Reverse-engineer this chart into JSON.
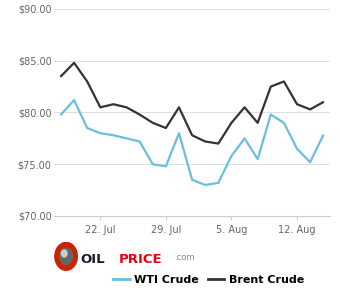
{
  "wti_y": [
    79.8,
    81.2,
    78.5,
    78.0,
    77.8,
    77.5,
    77.2,
    75.0,
    74.8,
    78.0,
    73.5,
    73.0,
    73.2,
    75.8,
    77.5,
    75.5,
    79.8,
    79.0,
    76.5,
    75.2,
    77.8
  ],
  "brent_y": [
    83.5,
    84.8,
    83.0,
    80.5,
    80.8,
    80.5,
    79.8,
    79.0,
    78.5,
    80.5,
    77.8,
    77.2,
    77.0,
    79.0,
    80.5,
    79.0,
    82.5,
    83.0,
    80.8,
    80.3,
    81.0
  ],
  "wti_color": "#6bbfde",
  "brent_color": "#333333",
  "ylim": [
    70,
    90
  ],
  "yticks": [
    70,
    75,
    80,
    85,
    90
  ],
  "xtick_positions": [
    3,
    8,
    13,
    18
  ],
  "xtick_labels": [
    "22. Jul",
    "29. Jul",
    "5. Aug",
    "12. Aug"
  ],
  "background_color": "#ffffff",
  "grid_color": "#e0e0e0",
  "legend_wti": "WTI Crude",
  "legend_brent": "Brent Crude",
  "oilprice_oil_color": "#1a1a2e",
  "oilprice_price_color": "#e8000d",
  "oilprice_com_color": "#888888"
}
